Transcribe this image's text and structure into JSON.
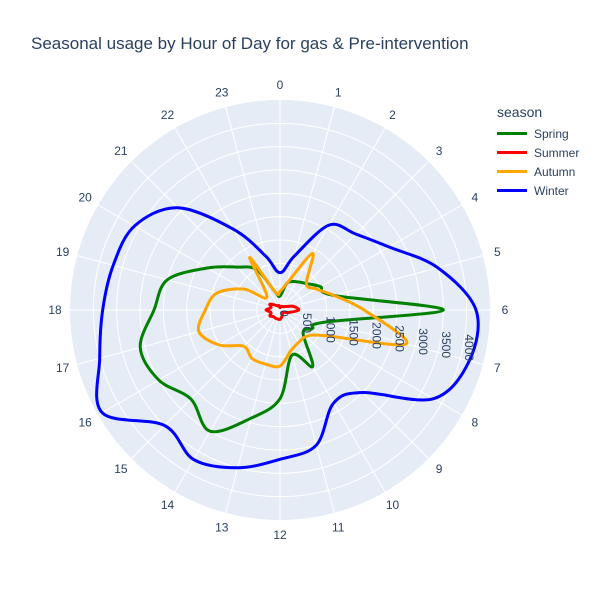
{
  "title": "Seasonal usage by Hour of Day for gas & Pre-intervention",
  "legend": {
    "title": "season"
  },
  "chart_data": {
    "type": "line",
    "subtype": "polar",
    "title": "Seasonal usage by Hour of Day for gas & Pre-intervention",
    "angular_ticks": [
      "0",
      "1",
      "2",
      "3",
      "4",
      "5",
      "6",
      "7",
      "8",
      "9",
      "10",
      "11",
      "12",
      "13",
      "14",
      "15",
      "16",
      "17",
      "18",
      "19",
      "20",
      "21",
      "22",
      "23"
    ],
    "radial_ticks": [
      "0",
      "500",
      "1000",
      "1500",
      "2000",
      "2500",
      "3000",
      "3500",
      "4000"
    ],
    "radial_range": [
      0,
      4500
    ],
    "angular_direction": "clockwise",
    "rotation_start": "top",
    "grid": true,
    "legend_position": "top-right",
    "series": [
      {
        "name": "Spring",
        "color": "#008000",
        "values": [
          300,
          600,
          700,
          800,
          1000,
          1200,
          3500,
          1000,
          800,
          700,
          1400,
          1000,
          1900,
          2400,
          3000,
          2700,
          3000,
          3100,
          2700,
          2500,
          1800,
          1300,
          1000,
          400
        ]
      },
      {
        "name": "Summer",
        "color": "#ff0000",
        "values": [
          50,
          80,
          90,
          100,
          150,
          300,
          400,
          200,
          100,
          80,
          100,
          150,
          200,
          200,
          200,
          200,
          250,
          200,
          300,
          200,
          250,
          150,
          100,
          100
        ]
      },
      {
        "name": "Autumn",
        "color": "#ffa500",
        "values": [
          400,
          600,
          1400,
          800,
          900,
          1200,
          1800,
          2800,
          1100,
          800,
          800,
          900,
          1200,
          1200,
          1200,
          1100,
          1500,
          1800,
          1600,
          1400,
          900,
          400,
          1300,
          400
        ]
      },
      {
        "name": "Winter",
        "color": "#0000ff",
        "values": [
          800,
          1200,
          2100,
          2300,
          2700,
          3500,
          4200,
          4200,
          3800,
          2500,
          2300,
          3000,
          3200,
          3500,
          3700,
          3500,
          4400,
          4000,
          3800,
          3700,
          3600,
          3100,
          2000,
          1200
        ]
      }
    ]
  }
}
